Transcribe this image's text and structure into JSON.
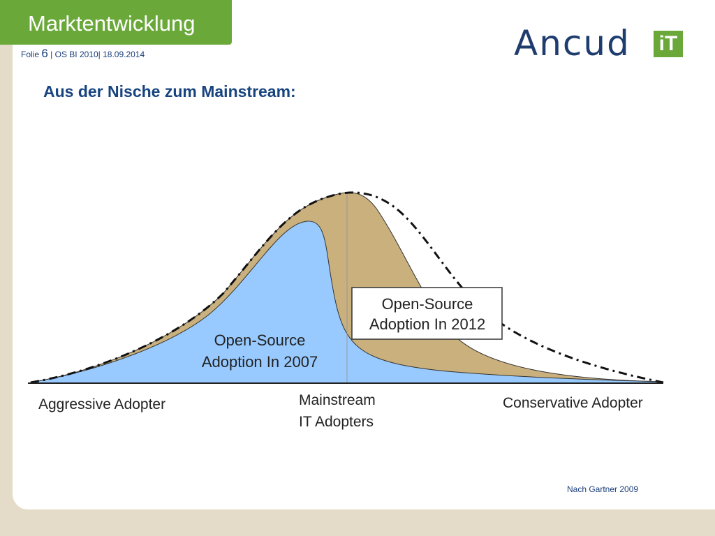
{
  "header": {
    "title": "Marktentwicklung",
    "folio_prefix": "Folie",
    "folio_number": "6",
    "folio_suffix": "| OS BI 2010|  18.09.2014"
  },
  "logo": {
    "text": "Ancud",
    "badge": "iT",
    "colors": {
      "text": "#1e3c6e",
      "badge": "#6aa83a"
    }
  },
  "subtitle": "Aus der Nische zum Mainstream:",
  "diagram": {
    "box_2012_line1": "Open-Source",
    "box_2012_line2": "Adoption In 2012",
    "label_2007_line1": "Open-Source",
    "label_2007_line2": "Adoption In 2007",
    "axis_left": "Aggressive Adopter",
    "axis_center_line1": "Mainstream",
    "axis_center_line2": "IT Adopters",
    "axis_right": "Conservative Adopter",
    "colors": {
      "area_2007": "#99caff",
      "area_2012": "#c9b07c",
      "title_tab": "#6aa83a",
      "subtitle": "#17447e"
    }
  },
  "source": "Nach Gartner 2009"
}
